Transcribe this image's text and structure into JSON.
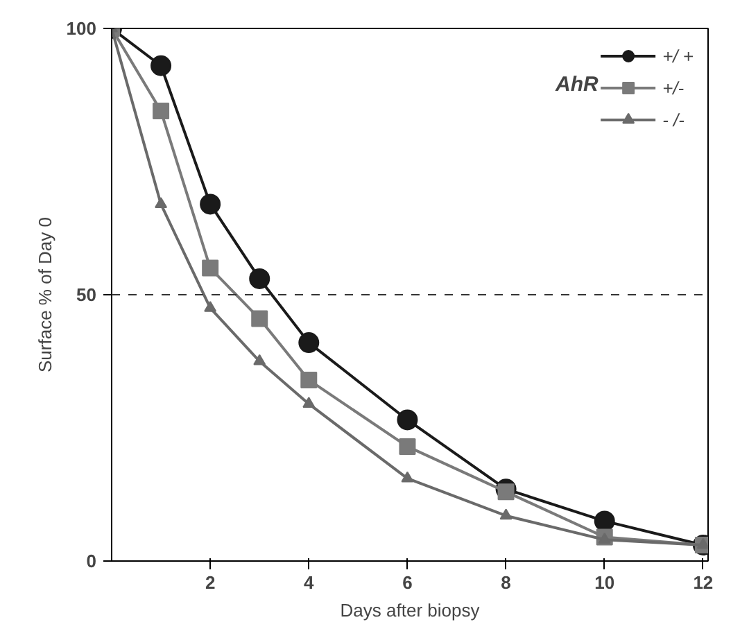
{
  "chart_data": {
    "type": "line",
    "xlabel": "Days after biopsy",
    "ylabel": "Surface % of Day 0",
    "legend_title": "AhR",
    "x": [
      0,
      1,
      2,
      3,
      4,
      6,
      8,
      10,
      12
    ],
    "series": [
      {
        "name": "+/ +",
        "color": "#1a1a1a",
        "marker": "circle",
        "values": [
          100,
          93,
          67,
          53,
          41,
          26.5,
          13.5,
          7.5,
          3
        ]
      },
      {
        "name": "+/-",
        "color": "#7a7a7a",
        "marker": "square",
        "values": [
          100,
          84.5,
          55,
          45.5,
          34,
          21.5,
          13,
          4.5,
          3
        ]
      },
      {
        "name": "- /-",
        "color": "#6a6a6a",
        "marker": "triangle",
        "values": [
          100,
          67,
          47.5,
          37.5,
          29.5,
          15.5,
          8.5,
          4,
          3
        ]
      }
    ],
    "xlim": [
      0,
      12.1
    ],
    "ylim": [
      0,
      100
    ],
    "xticks": [
      2,
      4,
      6,
      8,
      10,
      12
    ],
    "yticks": [
      0,
      50,
      100
    ],
    "ref_lines": [
      {
        "axis": "y",
        "value": 50,
        "label": null,
        "line_style": "dashed",
        "color": "#333333"
      }
    ],
    "grid": false,
    "legend": "top right",
    "line_style": "solid"
  }
}
